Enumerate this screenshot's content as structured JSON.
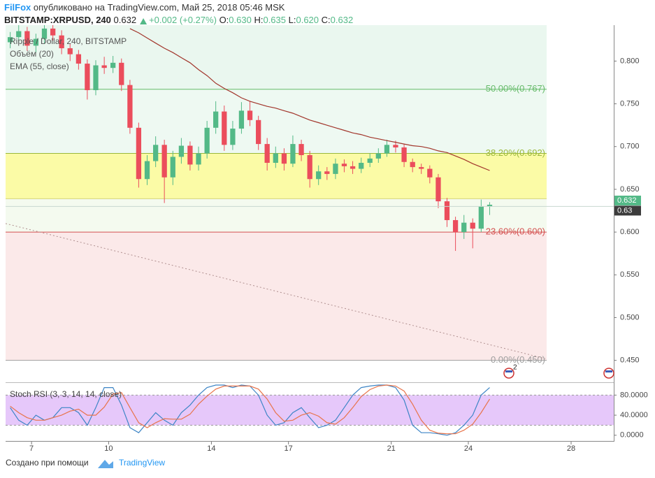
{
  "header": {
    "publisher": "FilFox",
    "published": "опубликовано на TradingView.com, Май 25, 2018 05:46 MSK",
    "symbol": "BITSTAMP:XRPUSD, 240",
    "last": "0.632",
    "change": "+0.002 (+0.27%)",
    "ohlc": [
      {
        "label": "O:",
        "value": "0.630"
      },
      {
        "label": "H:",
        "value": "0.635"
      },
      {
        "label": "L:",
        "value": "0.620"
      },
      {
        "label": "C:",
        "value": "0.632"
      }
    ]
  },
  "footer": {
    "text": "Создано при помощи",
    "brand": "TradingView"
  },
  "events_badge": "2",
  "chart_data": [
    {
      "type": "candlestick",
      "title": "Ripple / Dollar, 240, BITSTAMP",
      "volume_label": "Объём (20)",
      "up_color": "#53b987",
      "down_color": "#eb4d5c",
      "x": [
        6.17,
        6.5,
        6.83,
        7.17,
        7.5,
        7.83,
        8.17,
        8.5,
        8.83,
        9.17,
        9.5,
        9.83,
        10.17,
        10.5,
        10.83,
        11.17,
        11.5,
        11.83,
        12.17,
        12.5,
        12.83,
        13.17,
        13.5,
        13.83,
        14.17,
        14.5,
        14.83,
        15.17,
        15.5,
        15.83,
        16.17,
        16.5,
        16.83,
        17.17,
        17.5,
        17.83,
        18.17,
        18.5,
        18.83,
        19.17,
        19.5,
        19.83,
        20.17,
        20.5,
        20.83,
        21.17,
        21.5,
        21.83,
        22.17,
        22.5,
        22.83,
        23.17,
        23.5,
        23.83,
        24.17,
        24.5,
        24.83
      ],
      "open": [
        0.822,
        0.828,
        0.835,
        0.818,
        0.826,
        0.838,
        0.83,
        0.815,
        0.808,
        0.797,
        0.766,
        0.795,
        0.792,
        0.798,
        0.772,
        0.722,
        0.662,
        0.683,
        0.702,
        0.664,
        0.688,
        0.701,
        0.679,
        0.692,
        0.722,
        0.741,
        0.702,
        0.721,
        0.742,
        0.731,
        0.703,
        0.681,
        0.692,
        0.68,
        0.703,
        0.69,
        0.662,
        0.671,
        0.668,
        0.68,
        0.677,
        0.674,
        0.681,
        0.686,
        0.692,
        0.702,
        0.699,
        0.682,
        0.676,
        0.674,
        0.664,
        0.636,
        0.614,
        0.6,
        0.611,
        0.604,
        0.63
      ],
      "high": [
        0.834,
        0.842,
        0.84,
        0.832,
        0.842,
        0.842,
        0.836,
        0.82,
        0.813,
        0.802,
        0.801,
        0.805,
        0.806,
        0.803,
        0.778,
        0.728,
        0.69,
        0.712,
        0.708,
        0.695,
        0.71,
        0.706,
        0.7,
        0.73,
        0.753,
        0.748,
        0.73,
        0.752,
        0.753,
        0.736,
        0.71,
        0.7,
        0.698,
        0.713,
        0.708,
        0.695,
        0.678,
        0.676,
        0.686,
        0.685,
        0.683,
        0.687,
        0.692,
        0.698,
        0.708,
        0.707,
        0.703,
        0.686,
        0.68,
        0.678,
        0.668,
        0.64,
        0.618,
        0.62,
        0.616,
        0.638,
        0.635
      ],
      "low": [
        0.815,
        0.822,
        0.812,
        0.81,
        0.82,
        0.824,
        0.808,
        0.8,
        0.79,
        0.755,
        0.76,
        0.785,
        0.786,
        0.765,
        0.715,
        0.652,
        0.655,
        0.676,
        0.634,
        0.655,
        0.68,
        0.672,
        0.672,
        0.686,
        0.715,
        0.695,
        0.696,
        0.715,
        0.724,
        0.696,
        0.672,
        0.675,
        0.672,
        0.676,
        0.683,
        0.652,
        0.655,
        0.661,
        0.662,
        0.67,
        0.668,
        0.669,
        0.676,
        0.681,
        0.688,
        0.693,
        0.676,
        0.67,
        0.668,
        0.657,
        0.628,
        0.606,
        0.578,
        0.592,
        0.581,
        0.6,
        0.62
      ],
      "close": [
        0.828,
        0.835,
        0.818,
        0.826,
        0.838,
        0.83,
        0.815,
        0.808,
        0.797,
        0.766,
        0.795,
        0.792,
        0.798,
        0.772,
        0.722,
        0.662,
        0.683,
        0.702,
        0.664,
        0.688,
        0.701,
        0.679,
        0.692,
        0.722,
        0.741,
        0.702,
        0.721,
        0.742,
        0.731,
        0.703,
        0.681,
        0.692,
        0.68,
        0.703,
        0.69,
        0.662,
        0.671,
        0.668,
        0.68,
        0.677,
        0.674,
        0.681,
        0.686,
        0.692,
        0.702,
        0.699,
        0.682,
        0.676,
        0.674,
        0.664,
        0.636,
        0.614,
        0.6,
        0.611,
        0.604,
        0.63,
        0.632
      ],
      "series": [
        {
          "name": "EMA (55, close)",
          "color": "#a2362c",
          "values": [
            null,
            null,
            null,
            null,
            null,
            null,
            null,
            null,
            null,
            null,
            null,
            null,
            null,
            null,
            0.838,
            0.833,
            0.827,
            0.821,
            0.815,
            0.81,
            0.804,
            0.798,
            0.79,
            0.783,
            0.774,
            0.768,
            0.763,
            0.757,
            0.753,
            0.75,
            0.747,
            0.745,
            0.742,
            0.739,
            0.735,
            0.731,
            0.728,
            0.725,
            0.722,
            0.719,
            0.716,
            0.714,
            0.711,
            0.709,
            0.707,
            0.705,
            0.703,
            0.701,
            0.7,
            0.698,
            0.695,
            0.693,
            0.689,
            0.685,
            0.68,
            0.676,
            0.672
          ]
        }
      ],
      "levels": [
        {
          "label": "50.00%(0.767)",
          "value": 0.767,
          "color": "#66bb6a",
          "fill": "#eaf7ef"
        },
        {
          "label": "38.20%(0.692)",
          "value": 0.692,
          "color": "#9ab83a",
          "fill": "#eef9f2"
        },
        {
          "label": null,
          "value": 0.639,
          "color": "#d6d67a",
          "fill": "#fbfba6"
        },
        {
          "label": "23.60%(0.600)",
          "value": 0.6,
          "color": "#d45050",
          "fill": "#f4faef"
        },
        {
          "label": "0.00%(0.450)",
          "value": 0.45,
          "color": "#9e9e9e",
          "fill": "#fbe9e9"
        }
      ],
      "trendline": {
        "x": [
          5.99,
          27
        ],
        "values": [
          0.61,
          0.452
        ],
        "color": "#b09090"
      },
      "price_tags": [
        {
          "value": 0.632,
          "color": "#53b987"
        },
        {
          "value": 0.63,
          "color": "#3c3c3c"
        }
      ],
      "xlim": [
        5.99,
        29.66
      ],
      "ylim": [
        0.426,
        0.842
      ],
      "yticks": [
        {
          "value": 0.45,
          "label": "0.450"
        },
        {
          "value": 0.5,
          "label": "0.500"
        },
        {
          "value": 0.55,
          "label": "0.550"
        },
        {
          "value": 0.6,
          "label": "0.600"
        },
        {
          "value": 0.65,
          "label": "0.650"
        },
        {
          "value": 0.7,
          "label": "0.700"
        },
        {
          "value": 0.75,
          "label": "0.750"
        },
        {
          "value": 0.8,
          "label": "0.800"
        }
      ]
    },
    {
      "type": "line",
      "title": "Stoch RSI (3, 3, 14, 14, close)",
      "x": [
        6.17,
        6.5,
        6.83,
        7.17,
        7.5,
        7.83,
        8.17,
        8.5,
        8.83,
        9.17,
        9.5,
        9.83,
        10.17,
        10.5,
        10.83,
        11.17,
        11.5,
        11.83,
        12.17,
        12.5,
        12.83,
        13.17,
        13.5,
        13.83,
        14.17,
        14.5,
        14.83,
        15.17,
        15.5,
        15.83,
        16.17,
        16.5,
        16.83,
        17.17,
        17.5,
        17.83,
        18.17,
        18.5,
        18.83,
        19.17,
        19.5,
        19.83,
        20.17,
        20.5,
        20.83,
        21.17,
        21.5,
        21.83,
        22.17,
        22.5,
        22.83,
        23.17,
        23.5,
        23.83,
        24.17,
        24.5,
        24.83
      ],
      "series": [
        {
          "color": "#3d85c6",
          "values": [
            55,
            30,
            20,
            40,
            30,
            35,
            55,
            55,
            45,
            20,
            55,
            95,
            95,
            60,
            15,
            5,
            25,
            45,
            30,
            20,
            45,
            60,
            80,
            95,
            100,
            100,
            95,
            100,
            98,
            80,
            40,
            20,
            25,
            45,
            55,
            35,
            15,
            20,
            30,
            55,
            80,
            95,
            98,
            100,
            100,
            95,
            70,
            20,
            5,
            5,
            3,
            0,
            5,
            20,
            40,
            80,
            95
          ]
        },
        {
          "color": "#e8744b",
          "values": [
            58,
            45,
            35,
            30,
            30,
            35,
            40,
            48,
            52,
            40,
            40,
            56,
            82,
            85,
            55,
            25,
            15,
            25,
            33,
            32,
            32,
            42,
            62,
            78,
            92,
            98,
            98,
            98,
            98,
            92,
            72,
            45,
            28,
            30,
            40,
            45,
            38,
            25,
            22,
            35,
            55,
            77,
            91,
            98,
            100,
            98,
            88,
            62,
            30,
            10,
            4,
            3,
            3,
            10,
            22,
            45,
            72
          ]
        }
      ],
      "band": [
        20,
        80
      ],
      "band_color": "#e6c8fa",
      "xlim": [
        5.99,
        29.66
      ],
      "ylim": [
        -10,
        101.4
      ],
      "xticks": [
        7,
        10,
        14,
        17,
        21,
        24,
        28
      ],
      "yticks": [
        {
          "value": 0,
          "label": "0.0000"
        },
        {
          "value": 40,
          "label": "40.0000"
        },
        {
          "value": 80,
          "label": "80.0000"
        }
      ]
    }
  ]
}
